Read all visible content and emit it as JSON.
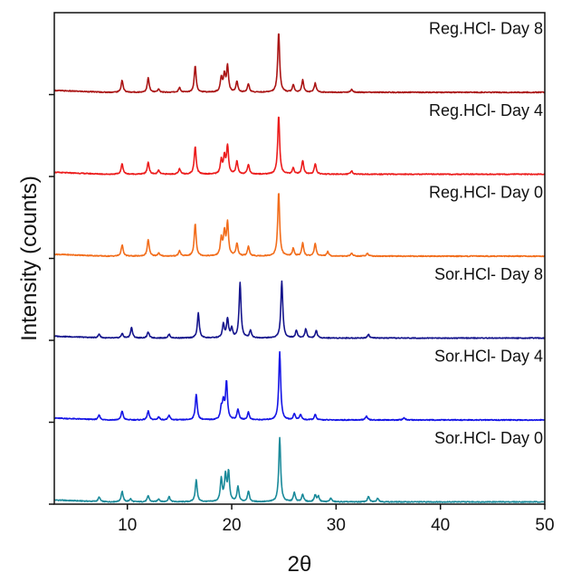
{
  "chart_data": {
    "type": "line",
    "xlabel": "2θ",
    "ylabel": "Intensity (counts)",
    "xlim": [
      3,
      50
    ],
    "xticks": [
      10,
      20,
      30,
      40,
      50
    ],
    "x_tick_labels": [
      "10",
      "20",
      "30",
      "40",
      "50"
    ],
    "y_tick_labels": false,
    "stacked_offset": true,
    "grid": false,
    "series": [
      {
        "name": "Sor.HCl- Day 0",
        "color": "#1a8a9a",
        "baseline": 0,
        "peaks": [
          [
            7.3,
            0.06
          ],
          [
            9.5,
            0.14
          ],
          [
            10.3,
            0.04
          ],
          [
            12.0,
            0.08
          ],
          [
            13.0,
            0.04
          ],
          [
            14.0,
            0.07
          ],
          [
            16.6,
            0.29
          ],
          [
            19.0,
            0.3
          ],
          [
            19.4,
            0.34
          ],
          [
            19.7,
            0.38
          ],
          [
            20.6,
            0.2
          ],
          [
            21.6,
            0.14
          ],
          [
            24.6,
            0.85
          ],
          [
            26.0,
            0.12
          ],
          [
            26.8,
            0.1
          ],
          [
            28.0,
            0.09
          ],
          [
            28.3,
            0.07
          ],
          [
            29.5,
            0.05
          ],
          [
            33.1,
            0.07
          ],
          [
            34.0,
            0.05
          ]
        ]
      },
      {
        "name": "Sor.HCl- Day 4",
        "color": "#1414e6",
        "baseline": 1,
        "peaks": [
          [
            7.3,
            0.06
          ],
          [
            9.5,
            0.12
          ],
          [
            12.0,
            0.12
          ],
          [
            13.0,
            0.04
          ],
          [
            14.0,
            0.06
          ],
          [
            16.6,
            0.34
          ],
          [
            19.0,
            0.14
          ],
          [
            19.2,
            0.22
          ],
          [
            19.5,
            0.5
          ],
          [
            20.6,
            0.14
          ],
          [
            21.6,
            0.1
          ],
          [
            24.6,
            0.9
          ],
          [
            26.0,
            0.08
          ],
          [
            26.6,
            0.07
          ],
          [
            28.0,
            0.07
          ],
          [
            32.9,
            0.05
          ],
          [
            36.5,
            0.03
          ]
        ]
      },
      {
        "name": "Sor.HCl- Day 8",
        "color": "#14148c",
        "baseline": 2,
        "peaks": [
          [
            7.3,
            0.05
          ],
          [
            9.5,
            0.06
          ],
          [
            10.4,
            0.14
          ],
          [
            12.0,
            0.08
          ],
          [
            14.0,
            0.05
          ],
          [
            16.8,
            0.33
          ],
          [
            19.2,
            0.18
          ],
          [
            19.6,
            0.25
          ],
          [
            20.0,
            0.12
          ],
          [
            20.8,
            0.73
          ],
          [
            21.8,
            0.1
          ],
          [
            24.8,
            0.75
          ],
          [
            26.2,
            0.1
          ],
          [
            27.1,
            0.12
          ],
          [
            28.1,
            0.1
          ],
          [
            33.1,
            0.05
          ]
        ]
      },
      {
        "name": "Reg.HCl- Day 0",
        "color": "#f26d1b",
        "baseline": 3,
        "peaks": [
          [
            9.5,
            0.15
          ],
          [
            12.0,
            0.22
          ],
          [
            13.0,
            0.04
          ],
          [
            15.0,
            0.07
          ],
          [
            16.5,
            0.43
          ],
          [
            19.0,
            0.23
          ],
          [
            19.3,
            0.3
          ],
          [
            19.6,
            0.43
          ],
          [
            20.5,
            0.17
          ],
          [
            21.6,
            0.13
          ],
          [
            24.5,
            0.85
          ],
          [
            25.9,
            0.1
          ],
          [
            26.8,
            0.17
          ],
          [
            28.0,
            0.17
          ],
          [
            29.2,
            0.06
          ],
          [
            31.5,
            0.04
          ],
          [
            33.0,
            0.04
          ]
        ]
      },
      {
        "name": "Reg.HCl- Day 4",
        "color": "#ec1c1c",
        "baseline": 4,
        "peaks": [
          [
            9.5,
            0.14
          ],
          [
            12.0,
            0.16
          ],
          [
            13.0,
            0.05
          ],
          [
            15.0,
            0.07
          ],
          [
            16.5,
            0.37
          ],
          [
            19.0,
            0.18
          ],
          [
            19.3,
            0.22
          ],
          [
            19.6,
            0.37
          ],
          [
            20.5,
            0.17
          ],
          [
            21.6,
            0.13
          ],
          [
            24.5,
            0.78
          ],
          [
            25.9,
            0.08
          ],
          [
            26.8,
            0.18
          ],
          [
            28.0,
            0.14
          ],
          [
            31.5,
            0.04
          ]
        ]
      },
      {
        "name": "Reg.HCl- Day 8",
        "color": "#aa1414",
        "baseline": 5,
        "peaks": [
          [
            9.5,
            0.16
          ],
          [
            12.0,
            0.19
          ],
          [
            13.0,
            0.04
          ],
          [
            15.0,
            0.06
          ],
          [
            16.5,
            0.35
          ],
          [
            19.0,
            0.19
          ],
          [
            19.3,
            0.22
          ],
          [
            19.6,
            0.34
          ],
          [
            20.5,
            0.14
          ],
          [
            21.6,
            0.11
          ],
          [
            24.5,
            0.8
          ],
          [
            25.9,
            0.1
          ],
          [
            26.8,
            0.16
          ],
          [
            28.0,
            0.12
          ],
          [
            31.5,
            0.04
          ]
        ]
      }
    ]
  }
}
